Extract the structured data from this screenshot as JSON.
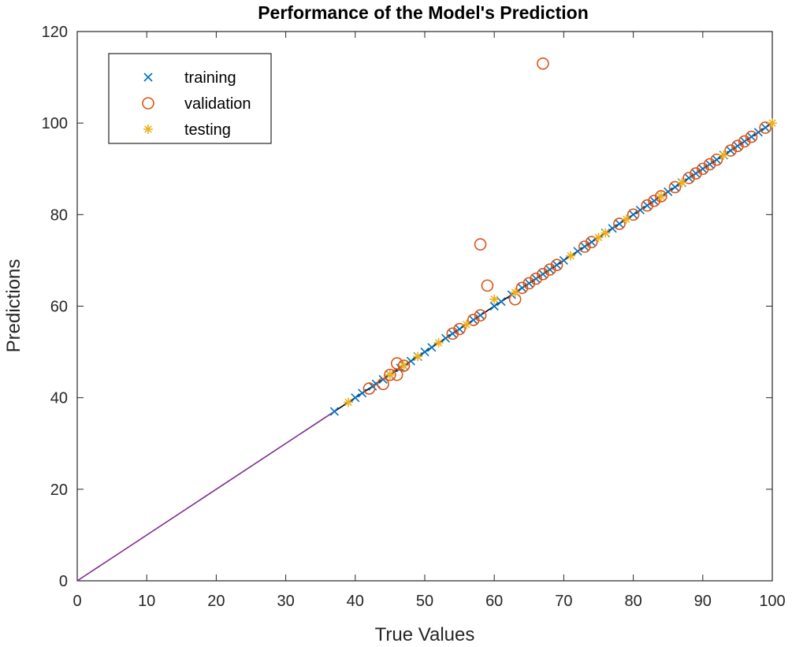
{
  "chart_data": {
    "type": "scatter",
    "title": "Performance of the Model's Prediction",
    "xlabel": "True Values",
    "ylabel": "Predictions",
    "xlim": [
      0,
      100
    ],
    "ylim": [
      0,
      120
    ],
    "xticks": [
      0,
      10,
      20,
      30,
      40,
      50,
      60,
      70,
      80,
      90,
      100
    ],
    "yticks": [
      0,
      20,
      40,
      60,
      80,
      100,
      120
    ],
    "grid": false,
    "legend_position": "top-left",
    "reference_line": {
      "x": [
        0,
        100
      ],
      "y": [
        0,
        100
      ],
      "color": "#7E2F8E"
    },
    "fit_line": {
      "x": [
        37,
        100
      ],
      "y": [
        37,
        100
      ],
      "color": "#000000"
    },
    "series": [
      {
        "name": "training",
        "marker": "x",
        "color": "#0072BD",
        "x": [
          37,
          40,
          41,
          42.5,
          43,
          44,
          45,
          46.5,
          47,
          48,
          49,
          50,
          51,
          53,
          54,
          55,
          57,
          58,
          60,
          61,
          62.5,
          64,
          65,
          66,
          67,
          68,
          69,
          70,
          72,
          73,
          74,
          76,
          77,
          78,
          80,
          81,
          82,
          83,
          85,
          86,
          87,
          88,
          89,
          90,
          91,
          92,
          93,
          94,
          95,
          96,
          97,
          98,
          99
        ],
        "y": [
          37,
          40,
          41,
          42.5,
          43,
          44,
          45,
          46.5,
          47,
          48,
          49,
          50,
          51,
          53,
          54,
          55,
          57,
          58,
          60,
          61,
          62.5,
          64,
          65,
          66,
          67,
          68,
          69,
          70,
          72,
          73,
          74,
          76,
          77,
          78,
          80,
          81,
          82,
          83,
          85,
          86,
          87,
          88,
          89,
          90,
          91,
          92,
          93,
          94,
          95,
          96,
          97,
          98,
          99
        ]
      },
      {
        "name": "validation",
        "marker": "o",
        "color": "#D95319",
        "x": [
          42,
          44,
          45,
          46,
          46,
          47,
          54,
          55,
          57,
          58,
          58,
          59,
          63,
          64,
          65,
          66,
          67,
          67,
          68,
          69,
          73,
          74,
          78,
          80,
          82,
          83,
          84,
          86,
          88,
          89,
          90,
          91,
          92,
          94,
          95,
          96,
          97,
          99
        ],
        "y": [
          42,
          43,
          45,
          47.5,
          45,
          47,
          54,
          55,
          57,
          58,
          73.5,
          64.5,
          61.5,
          64,
          65,
          66,
          67,
          113,
          68,
          69,
          73,
          74,
          78,
          80,
          82,
          83,
          84,
          86,
          88,
          89,
          90,
          91,
          92,
          94,
          95,
          96,
          97,
          99
        ]
      },
      {
        "name": "testing",
        "marker": "*",
        "color": "#EDB120",
        "x": [
          39,
          45,
          47,
          49,
          52,
          56,
          60,
          63,
          71,
          75,
          76,
          79,
          84,
          87,
          93,
          100
        ],
        "y": [
          39,
          45,
          47,
          49,
          52,
          56,
          61.5,
          63,
          71,
          75,
          76,
          79,
          84,
          87,
          93,
          100
        ]
      }
    ]
  }
}
